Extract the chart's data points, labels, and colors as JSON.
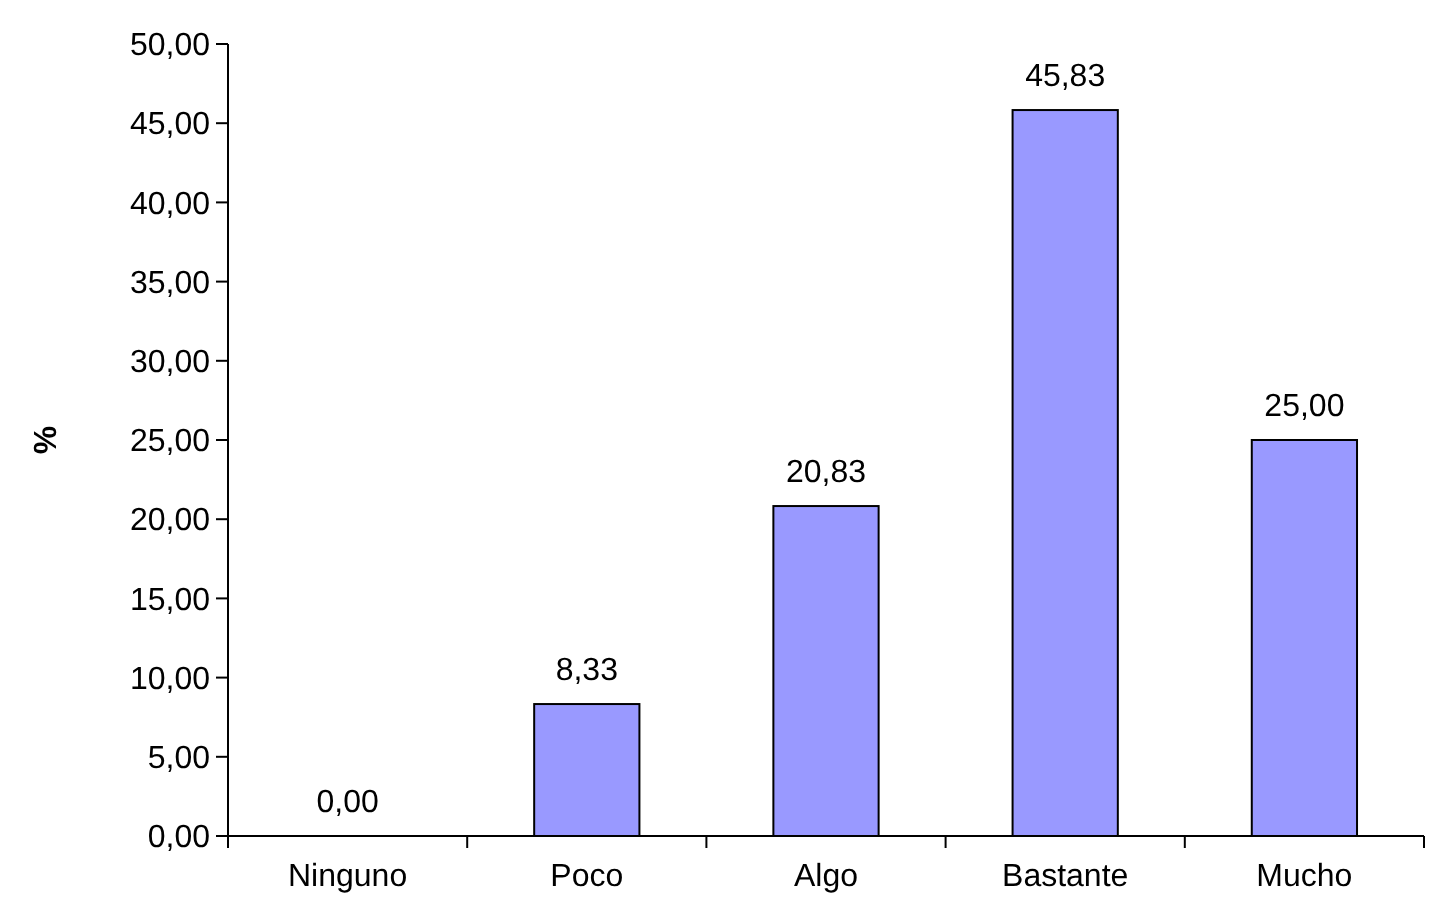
{
  "chart_data": {
    "type": "bar",
    "ylabel": "%",
    "categories": [
      "Ninguno",
      "Poco",
      "Algo",
      "Bastante",
      "Mucho"
    ],
    "values": [
      0,
      8.33,
      20.83,
      45.83,
      25
    ],
    "value_labels": [
      "0,00",
      "8,33",
      "20,83",
      "45,83",
      "25,00"
    ],
    "color": "#9999ff",
    "ylim": [
      0,
      50
    ],
    "yticks": [
      {
        "value": 0,
        "label": "0,00"
      },
      {
        "value": 5,
        "label": "5,00"
      },
      {
        "value": 10,
        "label": "10,00"
      },
      {
        "value": 15,
        "label": "15,00"
      },
      {
        "value": 20,
        "label": "20,00"
      },
      {
        "value": 25,
        "label": "25,00"
      },
      {
        "value": 30,
        "label": "30,00"
      },
      {
        "value": 35,
        "label": "35,00"
      },
      {
        "value": 40,
        "label": "40,00"
      },
      {
        "value": 45,
        "label": "45,00"
      },
      {
        "value": 50,
        "label": "50,00"
      }
    ],
    "grid": false
  }
}
